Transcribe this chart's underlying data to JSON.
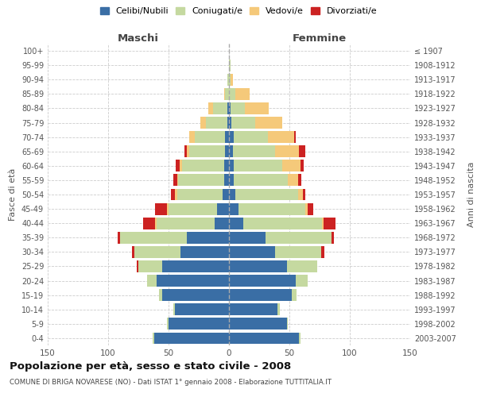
{
  "age_groups": [
    "0-4",
    "5-9",
    "10-14",
    "15-19",
    "20-24",
    "25-29",
    "30-34",
    "35-39",
    "40-44",
    "45-49",
    "50-54",
    "55-59",
    "60-64",
    "65-69",
    "70-74",
    "75-79",
    "80-84",
    "85-89",
    "90-94",
    "95-99",
    "100+"
  ],
  "birth_years": [
    "2003-2007",
    "1998-2002",
    "1993-1997",
    "1988-1992",
    "1983-1987",
    "1978-1982",
    "1973-1977",
    "1968-1972",
    "1963-1967",
    "1958-1962",
    "1953-1957",
    "1948-1952",
    "1943-1947",
    "1938-1942",
    "1933-1937",
    "1928-1932",
    "1923-1927",
    "1918-1922",
    "1913-1917",
    "1908-1912",
    "≤ 1907"
  ],
  "male": {
    "celibi": [
      62,
      50,
      45,
      55,
      60,
      55,
      40,
      35,
      12,
      10,
      5,
      4,
      4,
      3,
      3,
      1,
      1,
      0,
      0,
      0,
      0
    ],
    "coniugati": [
      1,
      1,
      1,
      3,
      8,
      20,
      38,
      55,
      48,
      40,
      38,
      38,
      35,
      30,
      25,
      18,
      12,
      3,
      1,
      0,
      0
    ],
    "vedovi": [
      0,
      0,
      0,
      0,
      0,
      0,
      0,
      0,
      1,
      1,
      2,
      1,
      2,
      2,
      5,
      5,
      4,
      1,
      0,
      0,
      0
    ],
    "divorziati": [
      0,
      0,
      0,
      0,
      0,
      1,
      2,
      2,
      10,
      10,
      3,
      3,
      3,
      2,
      0,
      0,
      0,
      0,
      0,
      0,
      0
    ]
  },
  "female": {
    "nubili": [
      58,
      48,
      40,
      52,
      55,
      48,
      38,
      30,
      12,
      8,
      5,
      4,
      4,
      3,
      4,
      2,
      1,
      0,
      0,
      0,
      0
    ],
    "coniugate": [
      1,
      1,
      2,
      4,
      10,
      25,
      38,
      55,
      65,
      55,
      52,
      45,
      40,
      35,
      28,
      20,
      12,
      5,
      1,
      1,
      0
    ],
    "vedove": [
      0,
      0,
      0,
      0,
      0,
      0,
      0,
      0,
      1,
      2,
      4,
      8,
      15,
      20,
      22,
      22,
      20,
      12,
      2,
      0,
      0
    ],
    "divorziate": [
      0,
      0,
      0,
      0,
      0,
      0,
      3,
      2,
      10,
      5,
      2,
      3,
      3,
      5,
      1,
      0,
      0,
      0,
      0,
      0,
      0
    ]
  },
  "color_celibi": "#3a6ea5",
  "color_coniugati": "#c5d9a0",
  "color_vedovi": "#f5c97a",
  "color_divorziati": "#cc2222",
  "title": "Popolazione per età, sesso e stato civile - 2008",
  "subtitle": "COMUNE DI BRIGA NOVARESE (NO) - Dati ISTAT 1° gennaio 2008 - Elaborazione TUTTITALIA.IT",
  "xlabel_left": "Maschi",
  "xlabel_right": "Femmine",
  "ylabel_left": "Fasce di età",
  "ylabel_right": "Anni di nascita",
  "xlim": 150,
  "legend_labels": [
    "Celibi/Nubili",
    "Coniugati/e",
    "Vedovi/e",
    "Divorziati/e"
  ]
}
